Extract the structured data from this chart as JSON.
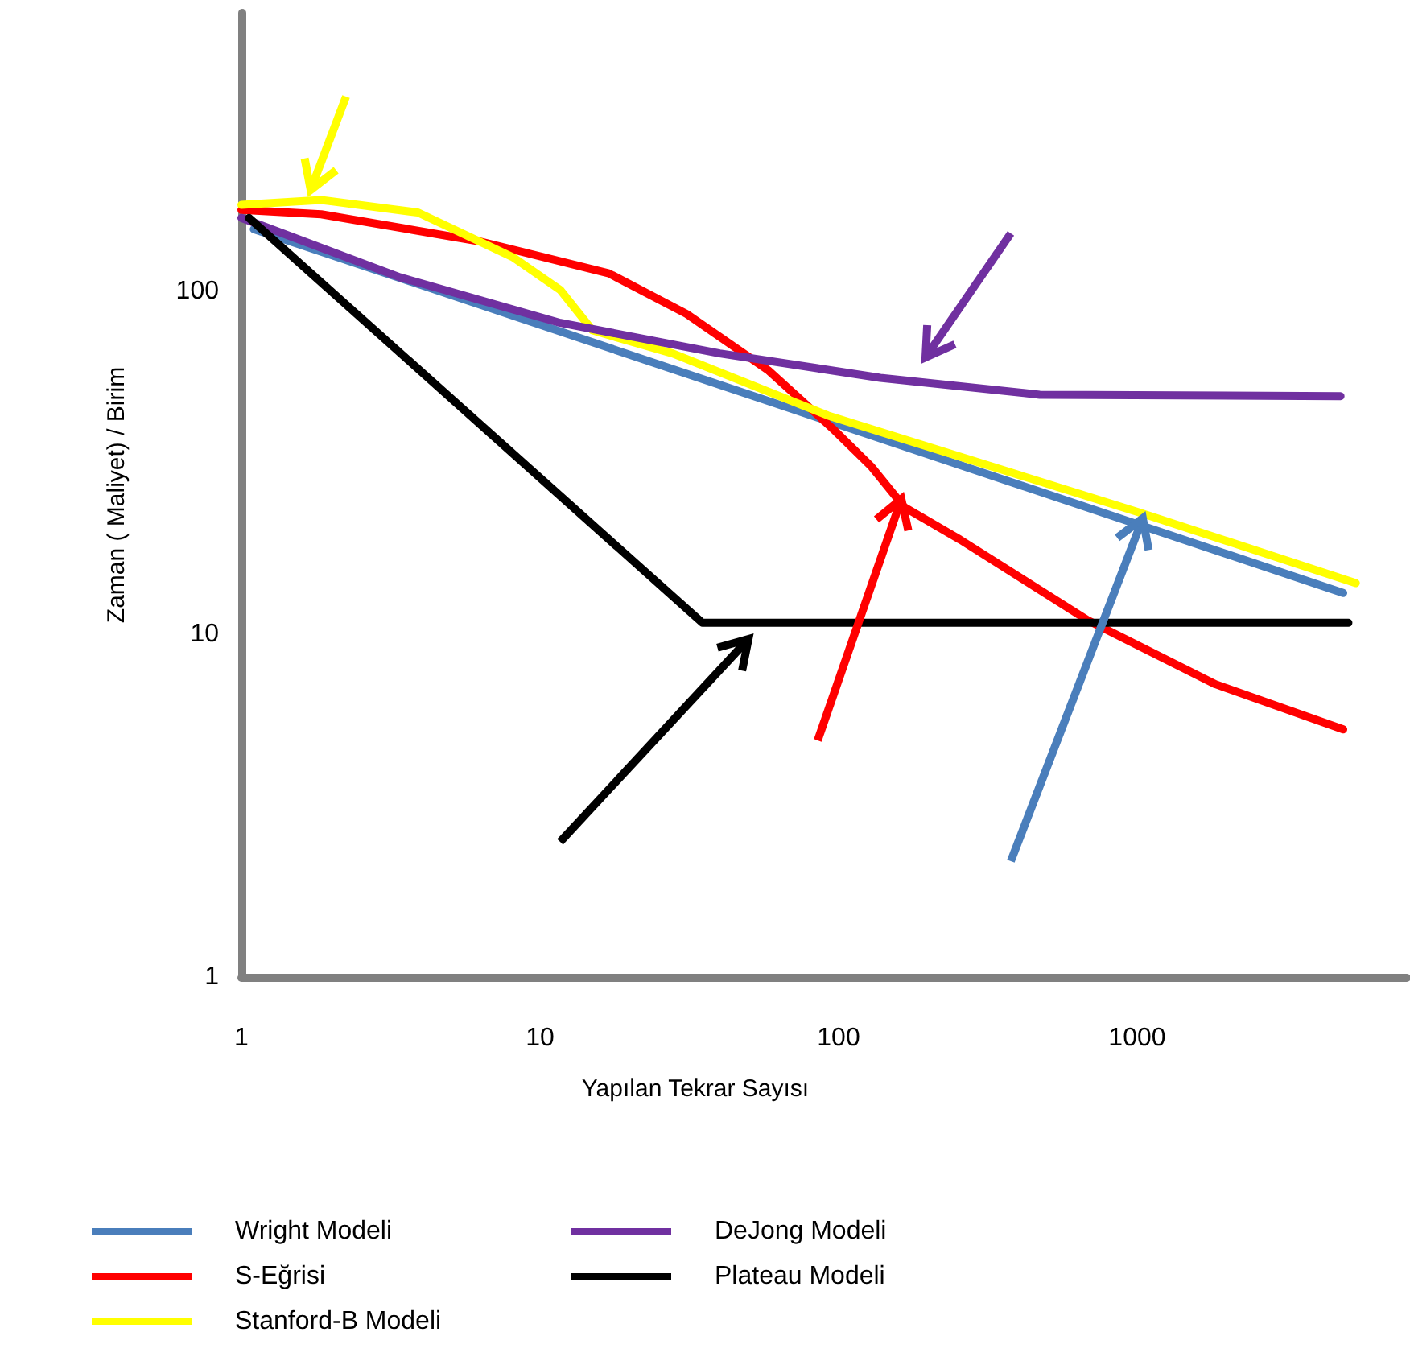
{
  "chart_data": {
    "type": "line",
    "xlabel": "Yapılan Tekrar Sayısı",
    "ylabel": "Zaman ( Maliyet) / Birim",
    "log": "xy",
    "xlim": [
      1,
      8000
    ],
    "ylim": [
      1,
      650
    ],
    "xticks": [
      1,
      10,
      100,
      1000
    ],
    "yticks": [
      1,
      10,
      100
    ],
    "grid": false,
    "legend": "bottom",
    "marker": "none",
    "line_style": "solid",
    "series": [
      {
        "name": "Wright Modeli",
        "color": "#4a7ebb",
        "x": [
          1.1,
          4900
        ],
        "values": [
          152,
          13.2
        ]
      },
      {
        "name": "S-Eğrisi",
        "color": "#ff0000",
        "x": [
          1,
          1.85,
          6.3,
          17,
          31,
          58,
          95,
          129,
          166,
          255,
          682,
          1830,
          4900
        ],
        "values": [
          173,
          168,
          140,
          113,
          86,
          59,
          40,
          30.8,
          23.5,
          18.9,
          11,
          7.15,
          5.28
        ]
      },
      {
        "name": "Stanford-B Modeli",
        "color": "#ffff00",
        "x": [
          1,
          1.85,
          3.9,
          8.1,
          11.7,
          15,
          27.8,
          92,
          1012,
          5400
        ],
        "values": [
          179,
          185,
          170,
          126,
          101,
          77,
          66,
          43.5,
          22.7,
          14.1
        ]
      },
      {
        "name": "DeJong Modeli",
        "color": "#7030a0",
        "x": [
          1,
          3.4,
          11.7,
          40,
          138,
          472,
          4800
        ],
        "values": [
          164,
          110,
          81,
          66,
          56,
          50,
          49.5
        ]
      },
      {
        "name": "Plateau Modeli",
        "color": "#000000",
        "x": [
          1.06,
          35,
          5100
        ],
        "values": [
          164,
          10.8,
          10.8
        ]
      }
    ]
  }
}
